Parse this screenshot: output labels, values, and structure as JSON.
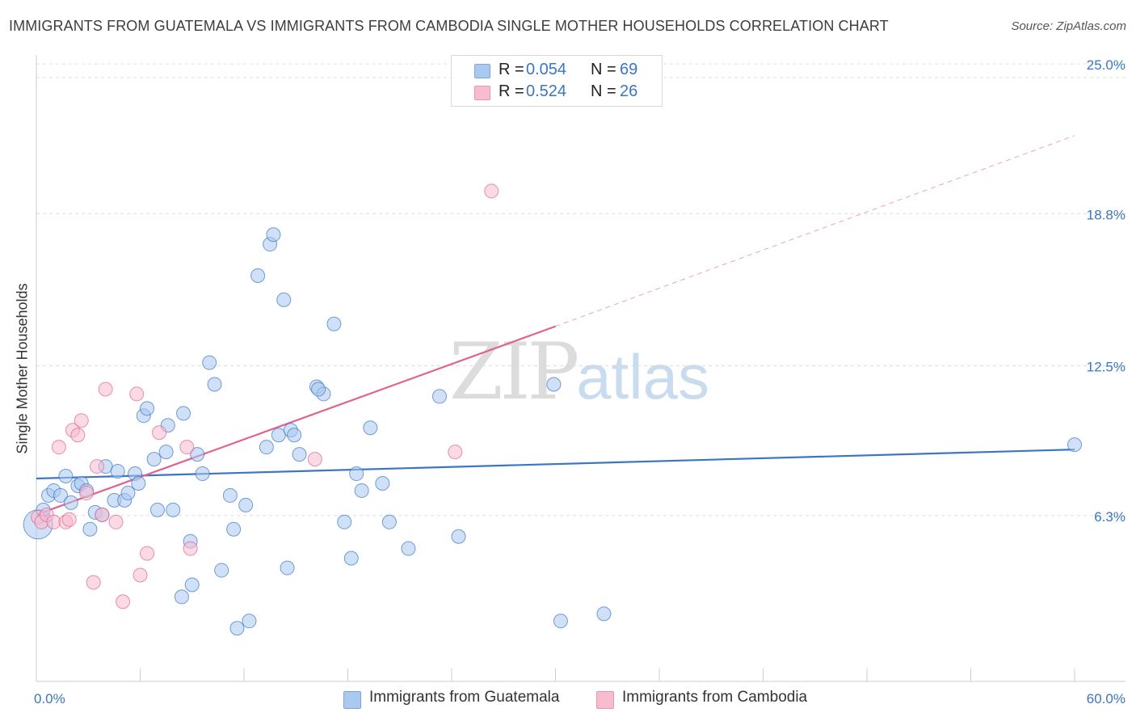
{
  "title": "IMMIGRANTS FROM GUATEMALA VS IMMIGRANTS FROM CAMBODIA SINGLE MOTHER HOUSEHOLDS CORRELATION CHART",
  "source": "Source: ZipAtlas.com",
  "watermark": {
    "zip": "ZIP",
    "atlas": "atlas"
  },
  "legend": {
    "rows": [
      {
        "r_label": "R =",
        "r_value": "0.054",
        "n_label": "N =",
        "n_value": "69",
        "color": "#a9c9f1"
      },
      {
        "r_label": "R =",
        "r_value": "0.524",
        "n_label": "N =",
        "n_value": "26",
        "color": "#f8bccf"
      }
    ]
  },
  "colors": {
    "guatemala": "#3a76c4",
    "guatemala_fill": "#a9c9f1",
    "cambodia": "#e0628f",
    "cambodia_fill": "#f8bccf",
    "tick": "#3a76c4",
    "grid": "#dddddd"
  },
  "chart_data": {
    "type": "scatter",
    "xlabel": "",
    "ylabel": "Single Mother Households",
    "xlim": [
      0,
      60
    ],
    "ylim": [
      0,
      25
    ],
    "x_tick_labels": [
      {
        "value": 0,
        "label": "0.0%"
      },
      {
        "value": 60,
        "label": "60.0%"
      }
    ],
    "y_tick_labels": [
      {
        "value": 6.3,
        "label": "6.3%"
      },
      {
        "value": 12.5,
        "label": "12.5%"
      },
      {
        "value": 18.8,
        "label": "18.8%"
      },
      {
        "value": 25.0,
        "label": "25.0%"
      }
    ],
    "grid": true,
    "legend_position": "top-center",
    "series": [
      {
        "name": "Immigrants from Guatemala",
        "trend": {
          "x": [
            0,
            60
          ],
          "y": [
            8.4,
            9.6
          ]
        },
        "points": [
          {
            "x": 0.1,
            "y": 6.5
          },
          {
            "x": 0.4,
            "y": 7.1
          },
          {
            "x": 0.7,
            "y": 7.7
          },
          {
            "x": 1.0,
            "y": 7.9
          },
          {
            "x": 1.4,
            "y": 7.7
          },
          {
            "x": 1.7,
            "y": 8.5
          },
          {
            "x": 2.0,
            "y": 7.4
          },
          {
            "x": 2.4,
            "y": 8.1
          },
          {
            "x": 2.6,
            "y": 8.2
          },
          {
            "x": 2.9,
            "y": 7.9
          },
          {
            "x": 3.1,
            "y": 6.3
          },
          {
            "x": 3.4,
            "y": 7.0
          },
          {
            "x": 3.8,
            "y": 6.9
          },
          {
            "x": 4.0,
            "y": 8.9
          },
          {
            "x": 4.5,
            "y": 7.5
          },
          {
            "x": 4.7,
            "y": 8.7
          },
          {
            "x": 5.1,
            "y": 7.5
          },
          {
            "x": 5.3,
            "y": 7.8
          },
          {
            "x": 5.7,
            "y": 8.6
          },
          {
            "x": 5.9,
            "y": 8.2
          },
          {
            "x": 6.2,
            "y": 11.0
          },
          {
            "x": 6.4,
            "y": 11.3
          },
          {
            "x": 6.8,
            "y": 9.2
          },
          {
            "x": 7.0,
            "y": 7.1
          },
          {
            "x": 7.5,
            "y": 9.5
          },
          {
            "x": 7.6,
            "y": 10.6
          },
          {
            "x": 7.9,
            "y": 7.1
          },
          {
            "x": 8.5,
            "y": 11.1
          },
          {
            "x": 8.9,
            "y": 5.8
          },
          {
            "x": 9.0,
            "y": 4.0
          },
          {
            "x": 9.3,
            "y": 9.4
          },
          {
            "x": 9.6,
            "y": 8.6
          },
          {
            "x": 8.4,
            "y": 3.5
          },
          {
            "x": 10.0,
            "y": 13.2
          },
          {
            "x": 10.3,
            "y": 12.3
          },
          {
            "x": 10.7,
            "y": 4.6
          },
          {
            "x": 11.2,
            "y": 7.7
          },
          {
            "x": 11.4,
            "y": 6.3
          },
          {
            "x": 11.6,
            "y": 2.2
          },
          {
            "x": 12.1,
            "y": 7.3
          },
          {
            "x": 12.3,
            "y": 2.5
          },
          {
            "x": 13.3,
            "y": 9.7
          },
          {
            "x": 13.5,
            "y": 18.1
          },
          {
            "x": 13.7,
            "y": 18.5
          },
          {
            "x": 12.8,
            "y": 16.8
          },
          {
            "x": 14.0,
            "y": 10.2
          },
          {
            "x": 14.5,
            "y": 4.7
          },
          {
            "x": 14.7,
            "y": 10.4
          },
          {
            "x": 14.9,
            "y": 10.2
          },
          {
            "x": 15.2,
            "y": 9.4
          },
          {
            "x": 14.3,
            "y": 15.8
          },
          {
            "x": 16.2,
            "y": 12.2
          },
          {
            "x": 16.6,
            "y": 11.9
          },
          {
            "x": 16.3,
            "y": 12.1
          },
          {
            "x": 17.2,
            "y": 14.8
          },
          {
            "x": 17.8,
            "y": 6.6
          },
          {
            "x": 18.2,
            "y": 5.1
          },
          {
            "x": 18.5,
            "y": 8.6
          },
          {
            "x": 18.8,
            "y": 7.9
          },
          {
            "x": 19.3,
            "y": 10.5
          },
          {
            "x": 20.0,
            "y": 8.2
          },
          {
            "x": 20.4,
            "y": 6.6
          },
          {
            "x": 21.5,
            "y": 5.5
          },
          {
            "x": 23.3,
            "y": 11.8
          },
          {
            "x": 24.4,
            "y": 6.0
          },
          {
            "x": 29.9,
            "y": 12.3
          },
          {
            "x": 30.3,
            "y": 2.5
          },
          {
            "x": 32.8,
            "y": 2.8
          },
          {
            "x": 60.0,
            "y": 9.8
          }
        ]
      },
      {
        "name": "Immigrants from Cambodia",
        "trend": {
          "x": [
            0,
            30
          ],
          "y": [
            6.9,
            14.7
          ]
        },
        "trend_extension": {
          "x": [
            30,
            60
          ],
          "y": [
            14.7,
            22.6
          ]
        },
        "points": [
          {
            "x": 0.1,
            "y": 6.8
          },
          {
            "x": 0.3,
            "y": 6.6
          },
          {
            "x": 0.6,
            "y": 6.9
          },
          {
            "x": 1.0,
            "y": 6.6
          },
          {
            "x": 1.3,
            "y": 9.7
          },
          {
            "x": 1.7,
            "y": 6.6
          },
          {
            "x": 1.9,
            "y": 6.7
          },
          {
            "x": 2.1,
            "y": 10.4
          },
          {
            "x": 2.4,
            "y": 10.2
          },
          {
            "x": 2.6,
            "y": 10.8
          },
          {
            "x": 2.9,
            "y": 7.8
          },
          {
            "x": 3.3,
            "y": 4.1
          },
          {
            "x": 3.5,
            "y": 8.9
          },
          {
            "x": 3.8,
            "y": 6.9
          },
          {
            "x": 4.0,
            "y": 12.1
          },
          {
            "x": 4.6,
            "y": 6.6
          },
          {
            "x": 5.0,
            "y": 3.3
          },
          {
            "x": 5.8,
            "y": 11.9
          },
          {
            "x": 6.0,
            "y": 4.4
          },
          {
            "x": 6.4,
            "y": 5.3
          },
          {
            "x": 7.1,
            "y": 10.3
          },
          {
            "x": 8.7,
            "y": 9.7
          },
          {
            "x": 8.9,
            "y": 5.5
          },
          {
            "x": 16.1,
            "y": 9.2
          },
          {
            "x": 24.2,
            "y": 9.5
          },
          {
            "x": 26.3,
            "y": 20.3
          }
        ]
      }
    ]
  },
  "bottom_legend": [
    {
      "label": "Immigrants from Guatemala",
      "color": "#a9c9f1"
    },
    {
      "label": "Immigrants from Cambodia",
      "color": "#f8bccf"
    }
  ]
}
